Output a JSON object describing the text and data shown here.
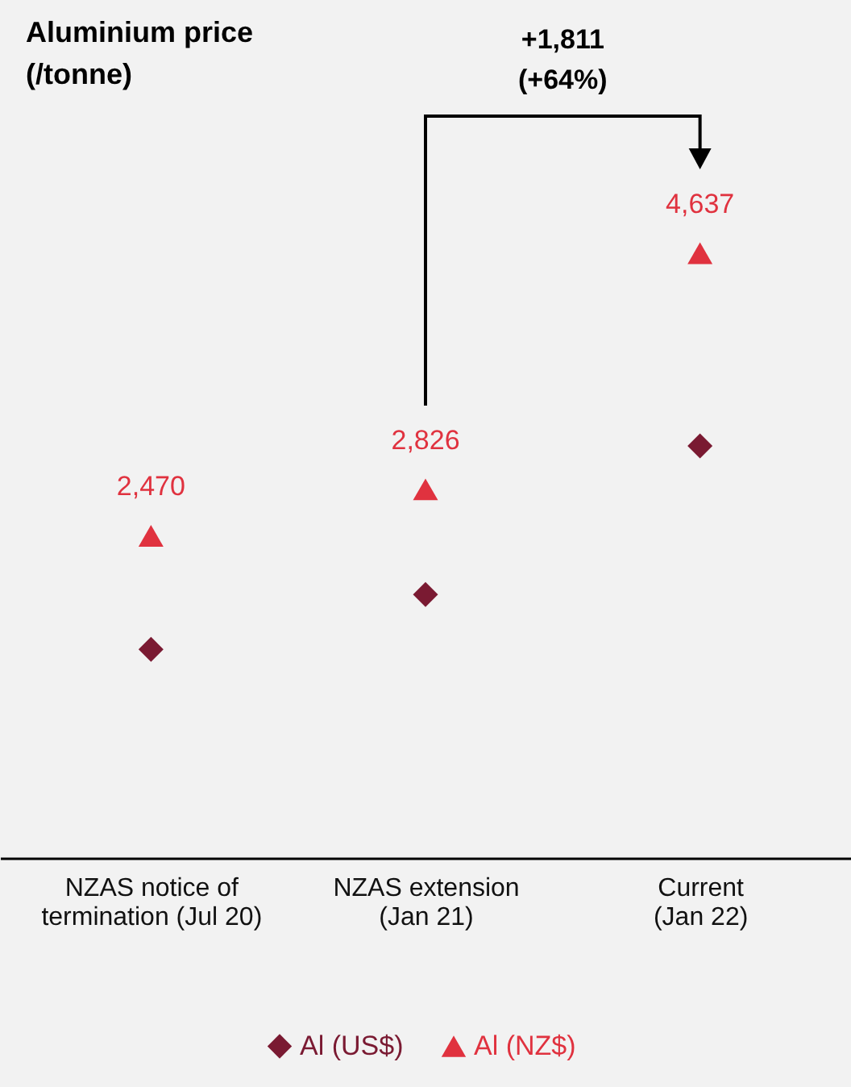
{
  "chart_data": {
    "type": "scatter",
    "title": "Aluminium price\n(/tonne)",
    "categories": [
      "NZAS notice of termination (Jul 20)",
      "NZAS extension (Jan 21)",
      "Current (Jan 22)"
    ],
    "series": [
      {
        "name": "Al (US$)",
        "color": "#7a1a32",
        "marker": "diamond",
        "values": [
          1600,
          2020,
          3160
        ]
      },
      {
        "name": "Al (NZ$)",
        "color": "#e0323f",
        "marker": "triangle",
        "values": [
          2470,
          2826,
          4637
        ],
        "value_labels": [
          "2,470",
          "2,826",
          "4,637"
        ]
      }
    ],
    "annotations": [
      "+1,811 (+64%)"
    ],
    "legend": "bottom",
    "grid": false
  }
}
